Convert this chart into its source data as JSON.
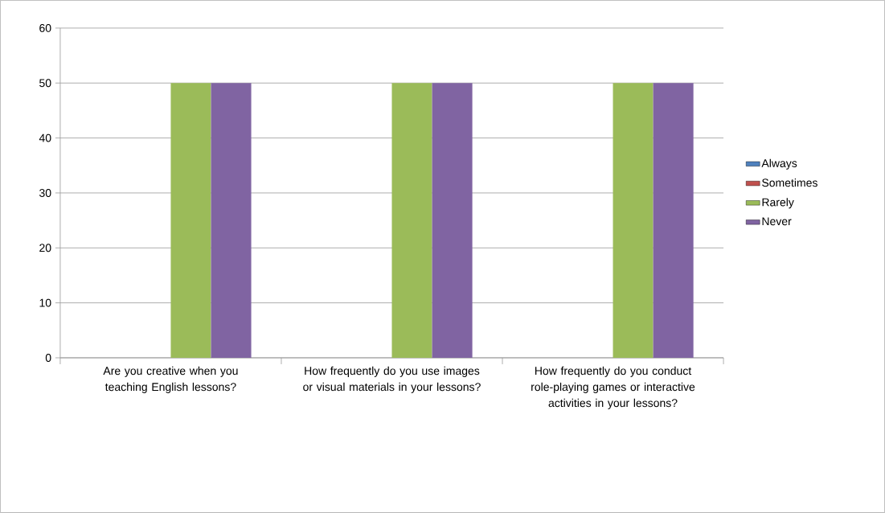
{
  "chart_data": {
    "type": "bar",
    "categories": [
      "Are you creative when you teaching English lessons?",
      "How frequently do you use images or visual materials in your lessons?",
      "How frequently do you conduct role-playing games or interactive activities in your lessons?"
    ],
    "series": [
      {
        "name": "Always",
        "color": "#4f81bd",
        "values": [
          0,
          0,
          0
        ]
      },
      {
        "name": "Sometimes",
        "color": "#c0504d",
        "values": [
          0,
          0,
          0
        ]
      },
      {
        "name": "Rarely",
        "color": "#9bbb59",
        "values": [
          50,
          50,
          50
        ]
      },
      {
        "name": "Never",
        "color": "#8064a2",
        "values": [
          50,
          50,
          50
        ]
      }
    ],
    "ylim": [
      0,
      60
    ],
    "yticks": [
      0,
      10,
      20,
      30,
      40,
      50,
      60
    ],
    "grid": "y",
    "legend": "right"
  }
}
